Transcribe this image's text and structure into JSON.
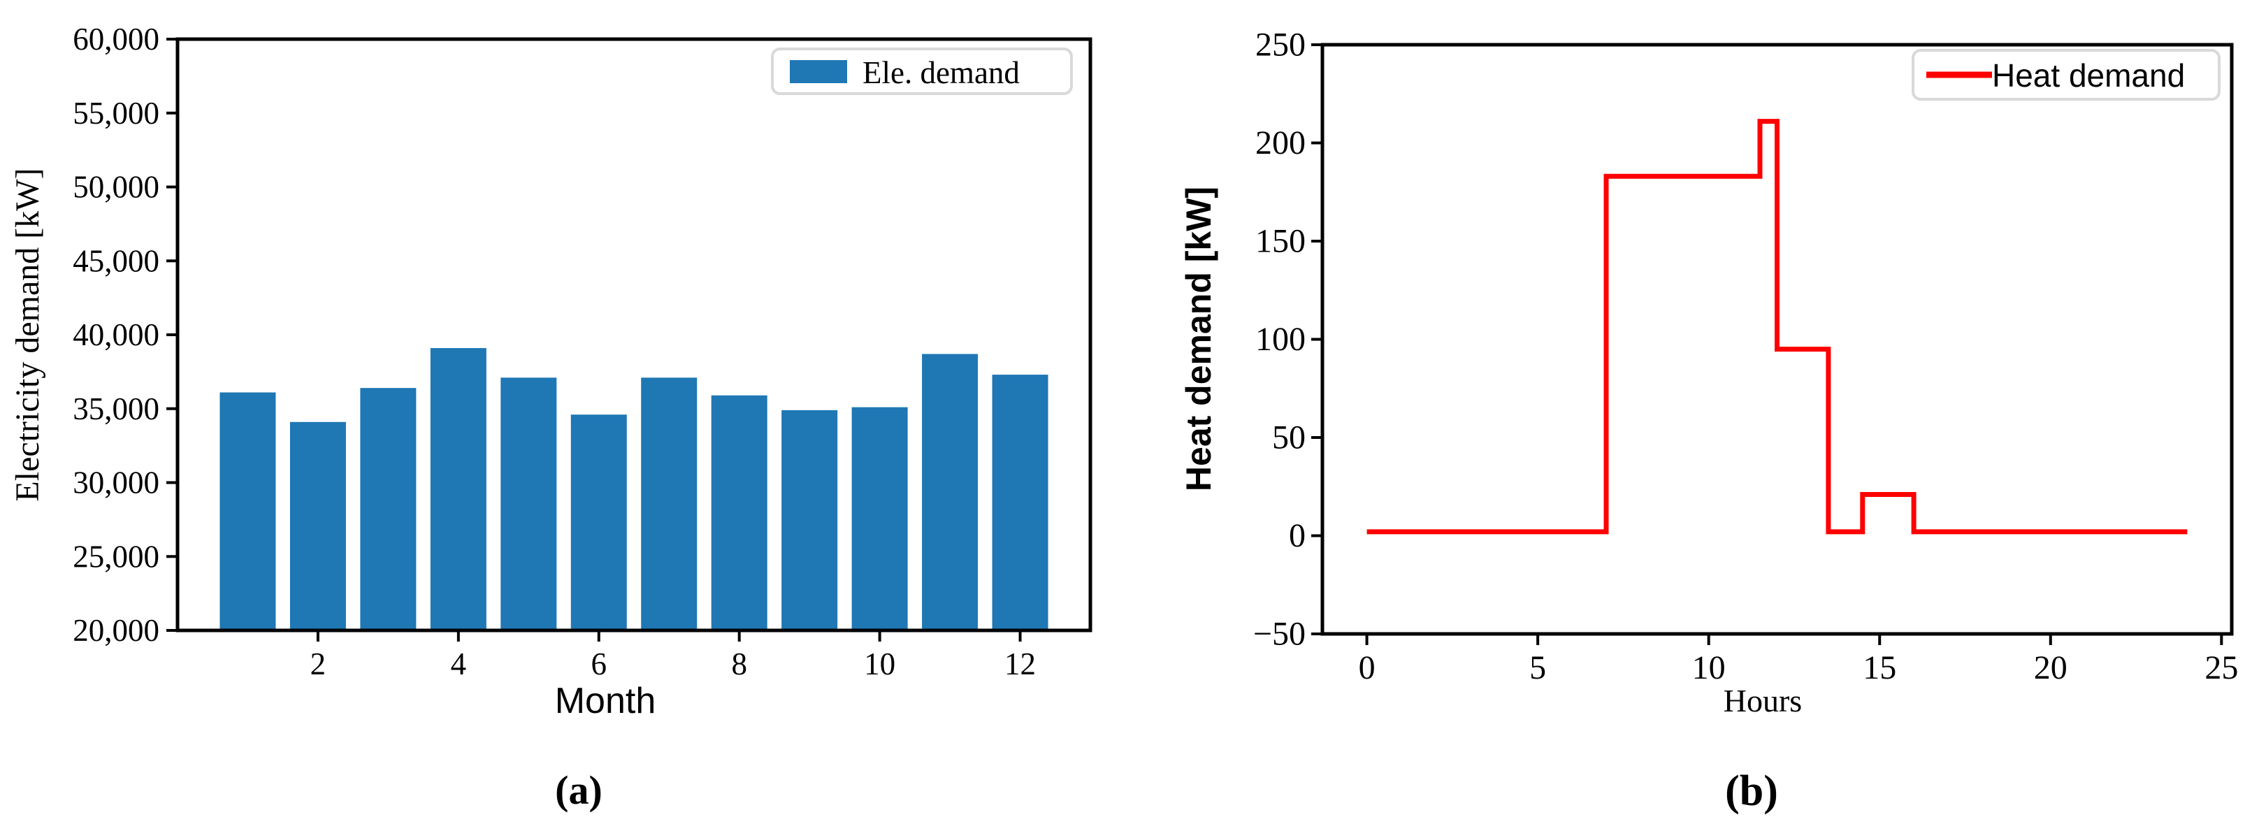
{
  "panels": [
    {
      "caption": "(a)"
    },
    {
      "caption": "(b)"
    }
  ],
  "colors": {
    "bar_blue": "#1f77b4",
    "line_red": "#fe0000",
    "axis_black": "#000000",
    "legend_border": "#d9d9d9",
    "background": "#ffffff"
  },
  "chart_data": [
    {
      "type": "bar",
      "title": "",
      "xlabel": "Month",
      "ylabel": "Electricity demand [kW]",
      "legend": {
        "label": "Ele. demand",
        "marker": "patch",
        "position": "upper right"
      },
      "categories": [
        1,
        2,
        3,
        4,
        5,
        6,
        7,
        8,
        9,
        10,
        11,
        12
      ],
      "values": [
        36100,
        34100,
        36400,
        39100,
        37100,
        34600,
        37100,
        35900,
        34900,
        35100,
        38700,
        37300
      ],
      "ylim": [
        20000,
        60000
      ],
      "yticks": [
        20000,
        25000,
        30000,
        35000,
        40000,
        45000,
        50000,
        55000,
        60000
      ],
      "ytick_labels": [
        "20,000",
        "25,000",
        "30,000",
        "35,000",
        "40,000",
        "45,000",
        "50,000",
        "55,000",
        "60,000"
      ],
      "xticks": [
        2,
        4,
        6,
        8,
        10,
        12
      ],
      "xtick_labels": [
        "2",
        "4",
        "6",
        "8",
        "10",
        "12"
      ],
      "xlim": [
        0,
        13
      ],
      "grid": false
    },
    {
      "type": "step-line",
      "title": "",
      "xlabel": "Hours",
      "ylabel": "Heat demand [kW]",
      "legend": {
        "label": "Heat demand",
        "marker": "line",
        "position": "upper right"
      },
      "x_breakpoints": [
        0,
        7,
        11.5,
        12,
        13.5,
        14.5,
        16,
        24
      ],
      "segment_values": [
        2,
        183,
        211,
        95,
        2,
        21,
        2
      ],
      "points": [
        [
          0,
          2
        ],
        [
          7,
          2
        ],
        [
          7,
          183
        ],
        [
          11.5,
          183
        ],
        [
          11.5,
          211
        ],
        [
          12,
          211
        ],
        [
          12,
          95
        ],
        [
          13.5,
          95
        ],
        [
          13.5,
          2
        ],
        [
          14.5,
          2
        ],
        [
          14.5,
          21
        ],
        [
          16,
          21
        ],
        [
          16,
          2
        ],
        [
          24,
          2
        ]
      ],
      "ylim": [
        -50,
        250
      ],
      "yticks": [
        -50,
        0,
        50,
        100,
        150,
        200,
        250
      ],
      "ytick_labels": [
        "−50",
        "0",
        "50",
        "100",
        "150",
        "200",
        "250"
      ],
      "xticks": [
        0,
        5,
        10,
        15,
        20,
        25
      ],
      "xtick_labels": [
        "0",
        "5",
        "10",
        "15",
        "20",
        "25"
      ],
      "xlim": [
        -1.3,
        25.3
      ],
      "grid": false
    }
  ]
}
